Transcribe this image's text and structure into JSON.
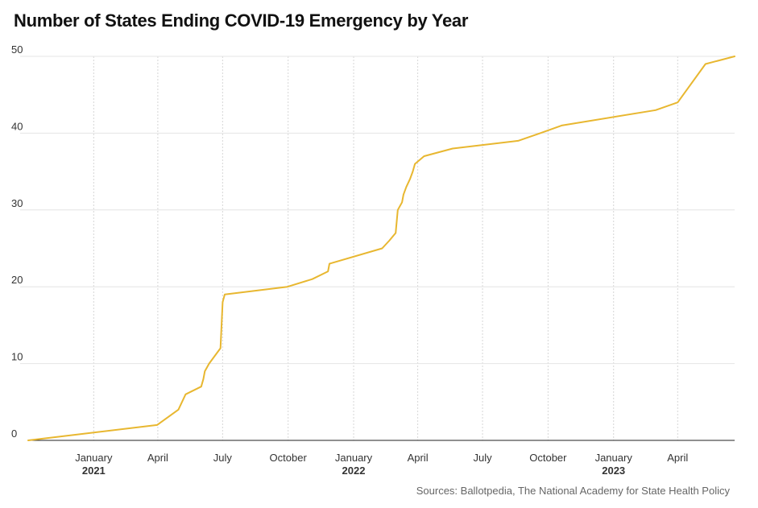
{
  "chart_data": {
    "type": "line",
    "title": "Number of States Ending COVID-19 Emergency by Year",
    "source": "Sources: Ballotpedia, The National Academy for State Health Policy",
    "ylim": [
      0,
      50
    ],
    "y_ticks": [
      "0",
      "10",
      "20",
      "30",
      "40",
      "50"
    ],
    "xlim": [
      "2020-10-01",
      "2023-06-20"
    ],
    "x_ticks": [
      {
        "date": "2021-01-01",
        "label": "January",
        "year": "2021"
      },
      {
        "date": "2021-04-01",
        "label": "April",
        "year": ""
      },
      {
        "date": "2021-07-01",
        "label": "July",
        "year": ""
      },
      {
        "date": "2021-10-01",
        "label": "October",
        "year": ""
      },
      {
        "date": "2022-01-01",
        "label": "January",
        "year": "2022"
      },
      {
        "date": "2022-04-01",
        "label": "April",
        "year": ""
      },
      {
        "date": "2022-07-01",
        "label": "July",
        "year": ""
      },
      {
        "date": "2022-10-01",
        "label": "October",
        "year": ""
      },
      {
        "date": "2023-01-01",
        "label": "January",
        "year": "2023"
      },
      {
        "date": "2023-04-01",
        "label": "April",
        "year": ""
      }
    ],
    "grid": true,
    "line_color": "#e8b730",
    "series": [
      {
        "x": [
          "2020-10-01",
          "2021-03-31",
          "2021-04-30",
          "2021-05-10",
          "2021-06-01",
          "2021-06-04",
          "2021-06-06",
          "2021-06-12",
          "2021-06-20",
          "2021-06-28",
          "2021-07-01",
          "2021-07-04",
          "2021-09-30",
          "2021-11-04",
          "2021-11-26",
          "2021-11-28",
          "2022-02-10",
          "2022-02-20",
          "2022-03-01",
          "2022-03-04",
          "2022-03-10",
          "2022-03-12",
          "2022-03-16",
          "2022-03-21",
          "2022-03-25",
          "2022-03-28",
          "2022-04-10",
          "2022-05-20",
          "2022-08-20",
          "2022-09-20",
          "2022-10-20",
          "2023-03-01",
          "2023-04-01",
          "2023-05-10",
          "2023-06-20"
        ],
        "y": [
          0,
          2,
          4,
          6,
          7,
          8,
          9,
          10,
          11,
          12,
          18,
          19,
          20,
          21,
          22,
          23,
          25,
          26,
          27,
          30,
          31,
          32,
          33,
          34,
          35,
          36,
          37,
          38,
          39,
          40,
          41,
          43,
          44,
          49,
          50
        ]
      }
    ]
  }
}
